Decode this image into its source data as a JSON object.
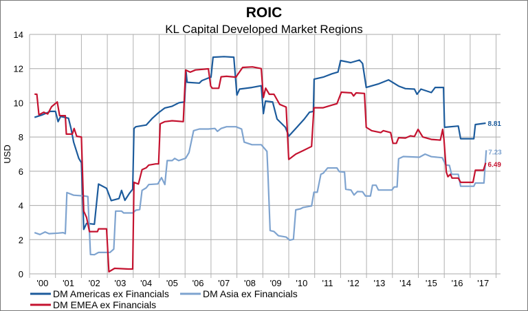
{
  "chart_data": {
    "type": "line",
    "title": "ROIC",
    "subtitle": "KL Capital Developed Market Regions",
    "ylabel": "USD",
    "xlabel": "",
    "ylim": [
      0,
      14
    ],
    "yticks": [
      0,
      2,
      4,
      6,
      8,
      10,
      12,
      14
    ],
    "xlim": [
      2000,
      2018
    ],
    "xtick_labels": [
      "'00",
      "'01",
      "'02",
      "'03",
      "'04",
      "'05",
      "'06",
      "'07",
      "'08",
      "'09",
      "'10",
      "'11",
      "'12",
      "'13",
      "'14",
      "'15",
      "'16",
      "'17"
    ],
    "grid": true,
    "legend_position": "bottom-left",
    "series": [
      {
        "name": "DM Americas ex Financials",
        "color": "#1c5b9c",
        "end_label": "8.81",
        "points": [
          [
            2000.19,
            9.15
          ],
          [
            2000.5,
            9.3
          ],
          [
            2000.8,
            9.5
          ],
          [
            2001.0,
            9.5
          ],
          [
            2001.1,
            8.9
          ],
          [
            2001.2,
            9.2
          ],
          [
            2001.5,
            9.1
          ],
          [
            2001.6,
            8.5
          ],
          [
            2001.7,
            7.7
          ],
          [
            2001.9,
            6.75
          ],
          [
            2002.0,
            6.5
          ],
          [
            2002.09,
            2.6
          ],
          [
            2002.2,
            2.95
          ],
          [
            2002.5,
            2.9
          ],
          [
            2002.66,
            5.25
          ],
          [
            2002.97,
            5.0
          ],
          [
            2003.15,
            4.28
          ],
          [
            2003.45,
            4.4
          ],
          [
            2003.55,
            4.88
          ],
          [
            2003.68,
            4.3
          ],
          [
            2003.85,
            4.7
          ],
          [
            2003.98,
            4.95
          ],
          [
            2004.03,
            8.5
          ],
          [
            2004.1,
            8.6
          ],
          [
            2004.5,
            8.7
          ],
          [
            2004.74,
            9.1
          ],
          [
            2005.0,
            9.45
          ],
          [
            2005.22,
            9.7
          ],
          [
            2005.5,
            9.8
          ],
          [
            2005.76,
            10.0
          ],
          [
            2005.98,
            10.05
          ],
          [
            2006.04,
            11.8
          ],
          [
            2006.08,
            11.2
          ],
          [
            2006.55,
            11.15
          ],
          [
            2006.65,
            11.3
          ],
          [
            2006.9,
            11.45
          ],
          [
            2007.0,
            11.5
          ],
          [
            2007.08,
            12.67
          ],
          [
            2007.5,
            12.7
          ],
          [
            2007.88,
            12.67
          ],
          [
            2008.0,
            10.45
          ],
          [
            2008.1,
            10.8
          ],
          [
            2008.58,
            10.9
          ],
          [
            2008.94,
            11.0
          ],
          [
            2009.02,
            9.37
          ],
          [
            2009.1,
            10.1
          ],
          [
            2009.38,
            10.05
          ],
          [
            2009.55,
            9.05
          ],
          [
            2009.87,
            8.57
          ],
          [
            2010.0,
            8.05
          ],
          [
            2010.27,
            8.5
          ],
          [
            2010.6,
            9.05
          ],
          [
            2010.8,
            9.45
          ],
          [
            2010.95,
            9.5
          ],
          [
            2010.98,
            11.38
          ],
          [
            2011.33,
            11.5
          ],
          [
            2011.67,
            11.7
          ],
          [
            2011.9,
            11.8
          ],
          [
            2012.0,
            12.47
          ],
          [
            2012.39,
            12.35
          ],
          [
            2012.73,
            12.5
          ],
          [
            2012.85,
            12.3
          ],
          [
            2012.99,
            10.9
          ],
          [
            2013.45,
            11.1
          ],
          [
            2013.85,
            11.34
          ],
          [
            2014.24,
            10.98
          ],
          [
            2014.5,
            10.83
          ],
          [
            2014.85,
            10.8
          ],
          [
            2014.95,
            10.5
          ],
          [
            2015.1,
            10.8
          ],
          [
            2015.5,
            10.6
          ],
          [
            2015.65,
            10.9
          ],
          [
            2015.97,
            10.9
          ],
          [
            2016.01,
            8.57
          ],
          [
            2016.54,
            8.64
          ],
          [
            2016.63,
            7.9
          ],
          [
            2017.14,
            7.9
          ],
          [
            2017.2,
            8.73
          ],
          [
            2017.6,
            8.81
          ]
        ]
      },
      {
        "name": "DM Asia ex Financials",
        "color": "#7ea3cf",
        "end_label": "7.23",
        "points": [
          [
            2000.19,
            2.41
          ],
          [
            2000.4,
            2.3
          ],
          [
            2000.6,
            2.45
          ],
          [
            2000.75,
            2.35
          ],
          [
            2001.1,
            2.38
          ],
          [
            2001.3,
            2.41
          ],
          [
            2001.38,
            2.35
          ],
          [
            2001.44,
            4.75
          ],
          [
            2001.7,
            4.6
          ],
          [
            2002.13,
            4.55
          ],
          [
            2002.25,
            4.52
          ],
          [
            2002.35,
            1.13
          ],
          [
            2002.5,
            1.12
          ],
          [
            2002.66,
            1.25
          ],
          [
            2003.1,
            1.25
          ],
          [
            2003.25,
            1.45
          ],
          [
            2003.32,
            3.67
          ],
          [
            2003.55,
            3.67
          ],
          [
            2003.63,
            3.56
          ],
          [
            2003.98,
            3.56
          ],
          [
            2004.1,
            3.72
          ],
          [
            2004.25,
            3.76
          ],
          [
            2004.34,
            4.88
          ],
          [
            2004.5,
            5.03
          ],
          [
            2004.6,
            5.22
          ],
          [
            2004.95,
            5.26
          ],
          [
            2005.09,
            5.63
          ],
          [
            2005.22,
            5.22
          ],
          [
            2005.31,
            6.62
          ],
          [
            2005.5,
            6.62
          ],
          [
            2005.6,
            6.75
          ],
          [
            2005.75,
            6.62
          ],
          [
            2006.02,
            6.76
          ],
          [
            2006.15,
            7.09
          ],
          [
            2006.33,
            8.37
          ],
          [
            2006.55,
            8.47
          ],
          [
            2006.9,
            8.47
          ],
          [
            2007.15,
            8.5
          ],
          [
            2007.25,
            8.33
          ],
          [
            2007.39,
            8.5
          ],
          [
            2007.6,
            8.6
          ],
          [
            2007.96,
            8.6
          ],
          [
            2008.18,
            8.47
          ],
          [
            2008.28,
            7.7
          ],
          [
            2008.58,
            7.55
          ],
          [
            2008.94,
            7.55
          ],
          [
            2009.16,
            7.16
          ],
          [
            2009.2,
            5.8
          ],
          [
            2009.28,
            2.53
          ],
          [
            2009.43,
            2.48
          ],
          [
            2009.6,
            2.23
          ],
          [
            2009.9,
            2.15
          ],
          [
            2010.04,
            1.97
          ],
          [
            2010.18,
            2.02
          ],
          [
            2010.27,
            3.74
          ],
          [
            2010.45,
            3.8
          ],
          [
            2010.55,
            3.88
          ],
          [
            2010.88,
            3.97
          ],
          [
            2010.97,
            4.77
          ],
          [
            2011.1,
            4.77
          ],
          [
            2011.24,
            5.82
          ],
          [
            2011.33,
            5.88
          ],
          [
            2011.5,
            6.19
          ],
          [
            2011.86,
            6.19
          ],
          [
            2011.95,
            5.98
          ],
          [
            2012.15,
            5.95
          ],
          [
            2012.2,
            4.95
          ],
          [
            2012.4,
            4.9
          ],
          [
            2012.52,
            4.61
          ],
          [
            2012.65,
            4.81
          ],
          [
            2012.85,
            4.8
          ],
          [
            2012.96,
            4.55
          ],
          [
            2013.15,
            4.55
          ],
          [
            2013.23,
            5.18
          ],
          [
            2013.37,
            5.18
          ],
          [
            2013.46,
            4.9
          ],
          [
            2013.98,
            4.9
          ],
          [
            2014.07,
            5.08
          ],
          [
            2014.18,
            5.08
          ],
          [
            2014.24,
            6.73
          ],
          [
            2014.42,
            6.86
          ],
          [
            2015.04,
            6.82
          ],
          [
            2015.26,
            7.0
          ],
          [
            2015.5,
            6.85
          ],
          [
            2015.92,
            6.79
          ],
          [
            2016.06,
            6.36
          ],
          [
            2016.2,
            6.34
          ],
          [
            2016.28,
            5.82
          ],
          [
            2016.54,
            5.82
          ],
          [
            2016.63,
            5.12
          ],
          [
            2017.14,
            5.12
          ],
          [
            2017.2,
            5.31
          ],
          [
            2017.53,
            5.31
          ],
          [
            2017.62,
            7.23
          ]
        ]
      },
      {
        "name": "DM EMEA ex Financials",
        "color": "#c4122f",
        "end_label": "6.49",
        "points": [
          [
            2000.19,
            10.51
          ],
          [
            2000.28,
            10.5
          ],
          [
            2000.36,
            9.3
          ],
          [
            2000.55,
            9.45
          ],
          [
            2000.7,
            9.35
          ],
          [
            2000.85,
            9.77
          ],
          [
            2001.07,
            10.05
          ],
          [
            2001.16,
            9.25
          ],
          [
            2001.38,
            9.25
          ],
          [
            2001.42,
            8.17
          ],
          [
            2001.65,
            8.17
          ],
          [
            2001.72,
            8.5
          ],
          [
            2001.82,
            8.04
          ],
          [
            2002.0,
            8.0
          ],
          [
            2002.09,
            3.67
          ],
          [
            2002.2,
            3.3
          ],
          [
            2002.31,
            2.47
          ],
          [
            2002.62,
            2.47
          ],
          [
            2002.66,
            2.63
          ],
          [
            2002.97,
            2.63
          ],
          [
            2003.06,
            0.12
          ],
          [
            2003.28,
            0.32
          ],
          [
            2003.55,
            0.3
          ],
          [
            2003.81,
            0.28
          ],
          [
            2003.98,
            0.28
          ],
          [
            2004.03,
            5.35
          ],
          [
            2004.2,
            5.25
          ],
          [
            2004.34,
            6.09
          ],
          [
            2004.5,
            6.2
          ],
          [
            2004.6,
            6.36
          ],
          [
            2004.87,
            6.43
          ],
          [
            2004.98,
            6.43
          ],
          [
            2005.04,
            8.77
          ],
          [
            2005.22,
            8.9
          ],
          [
            2005.5,
            8.95
          ],
          [
            2005.93,
            8.9
          ],
          [
            2006.02,
            11.92
          ],
          [
            2006.2,
            11.79
          ],
          [
            2006.4,
            11.92
          ],
          [
            2006.9,
            11.99
          ],
          [
            2006.99,
            10.98
          ],
          [
            2007.05,
            10.85
          ],
          [
            2007.3,
            10.85
          ],
          [
            2007.39,
            11.52
          ],
          [
            2007.6,
            11.55
          ],
          [
            2007.96,
            11.5
          ],
          [
            2008.22,
            12.07
          ],
          [
            2008.6,
            12.1
          ],
          [
            2008.94,
            12.0
          ],
          [
            2009.02,
            10.31
          ],
          [
            2009.11,
            10.86
          ],
          [
            2009.25,
            10.5
          ],
          [
            2009.43,
            10.5
          ],
          [
            2009.65,
            9.91
          ],
          [
            2009.9,
            9.75
          ],
          [
            2010.0,
            6.69
          ],
          [
            2010.27,
            7.0
          ],
          [
            2010.55,
            7.2
          ],
          [
            2010.88,
            7.45
          ],
          [
            2010.97,
            9.71
          ],
          [
            2011.33,
            9.71
          ],
          [
            2011.67,
            9.87
          ],
          [
            2011.86,
            9.95
          ],
          [
            2012.03,
            10.62
          ],
          [
            2012.42,
            10.58
          ],
          [
            2012.5,
            10.4
          ],
          [
            2012.6,
            10.58
          ],
          [
            2012.92,
            10.55
          ],
          [
            2012.99,
            8.57
          ],
          [
            2013.2,
            8.37
          ],
          [
            2013.55,
            8.26
          ],
          [
            2013.65,
            8.37
          ],
          [
            2013.93,
            8.26
          ],
          [
            2014.02,
            7.63
          ],
          [
            2014.15,
            7.63
          ],
          [
            2014.24,
            7.96
          ],
          [
            2014.5,
            7.94
          ],
          [
            2014.7,
            8.07
          ],
          [
            2014.85,
            8.03
          ],
          [
            2014.99,
            8.45
          ],
          [
            2015.17,
            8.0
          ],
          [
            2015.5,
            7.86
          ],
          [
            2015.85,
            7.82
          ],
          [
            2015.94,
            8.45
          ],
          [
            2015.99,
            7.85
          ],
          [
            2016.08,
            5.95
          ],
          [
            2016.14,
            5.68
          ],
          [
            2016.24,
            5.82
          ],
          [
            2016.3,
            5.6
          ],
          [
            2016.54,
            5.6
          ],
          [
            2016.63,
            5.35
          ],
          [
            2017.11,
            5.35
          ],
          [
            2017.2,
            6.06
          ],
          [
            2017.51,
            6.06
          ],
          [
            2017.6,
            6.49
          ]
        ]
      }
    ]
  }
}
